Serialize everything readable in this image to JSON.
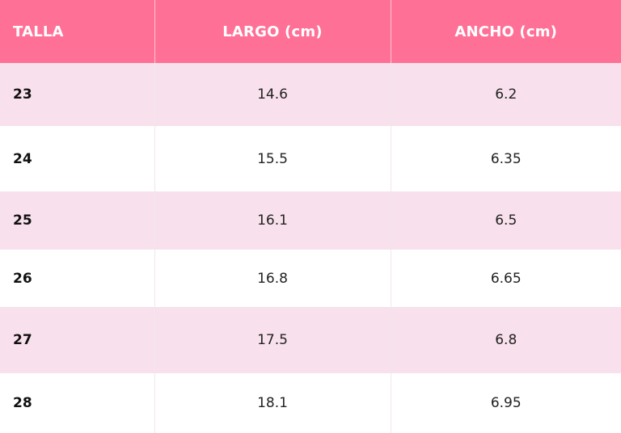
{
  "table": {
    "headers": [
      "TALLA",
      "LARGO (cm)",
      "ANCHO (cm)"
    ],
    "rows": [
      {
        "size": "23",
        "length": "14.6",
        "width": "6.2"
      },
      {
        "size": "24",
        "length": "15.5",
        "width": "6.35"
      },
      {
        "size": "25",
        "length": "16.1",
        "width": "6.5"
      },
      {
        "size": "26",
        "length": "16.8",
        "width": "6.65"
      },
      {
        "size": "27",
        "length": "17.5",
        "width": "6.8"
      },
      {
        "size": "28",
        "length": "18.1",
        "width": "6.95"
      }
    ]
  },
  "colors": {
    "header_background": "#ff7096",
    "header_text": "#ffffff",
    "stripe_row_background": "#f8e1ec",
    "plain_row_background": "#ffffff"
  }
}
